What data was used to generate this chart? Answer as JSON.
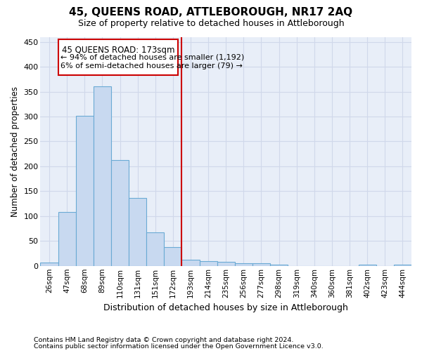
{
  "title": "45, QUEENS ROAD, ATTLEBOROUGH, NR17 2AQ",
  "subtitle": "Size of property relative to detached houses in Attleborough",
  "xlabel": "Distribution of detached houses by size in Attleborough",
  "ylabel": "Number of detached properties",
  "footnote1": "Contains HM Land Registry data © Crown copyright and database right 2024.",
  "footnote2": "Contains public sector information licensed under the Open Government Licence v3.0.",
  "bar_labels": [
    "26sqm",
    "47sqm",
    "68sqm",
    "89sqm",
    "110sqm",
    "131sqm",
    "151sqm",
    "172sqm",
    "193sqm",
    "214sqm",
    "235sqm",
    "256sqm",
    "277sqm",
    "298sqm",
    "319sqm",
    "340sqm",
    "360sqm",
    "381sqm",
    "402sqm",
    "423sqm",
    "444sqm"
  ],
  "bar_values": [
    7,
    108,
    301,
    360,
    213,
    137,
    68,
    38,
    13,
    10,
    8,
    6,
    5,
    2,
    0,
    0,
    0,
    0,
    3,
    0,
    2
  ],
  "bar_color": "#c8d9f0",
  "bar_edge_color": "#6aaad4",
  "ylim": [
    0,
    460
  ],
  "yticks": [
    0,
    50,
    100,
    150,
    200,
    250,
    300,
    350,
    400,
    450
  ],
  "property_line_x": 7.5,
  "annotation_text_line1": "45 QUEENS ROAD: 173sqm",
  "annotation_text_line2": "← 94% of detached houses are smaller (1,192)",
  "annotation_text_line3": "6% of semi-detached houses are larger (79) →",
  "grid_color": "#d0d8ea",
  "background_color": "#e8eef8"
}
